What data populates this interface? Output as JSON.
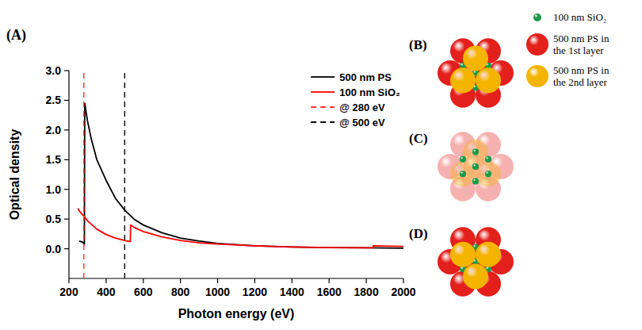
{
  "chart_data": {
    "type": "line",
    "xlabel": "Photon energy (eV)",
    "ylabel": "Optical density",
    "xlim": [
      200,
      2000
    ],
    "xticks": [
      200,
      400,
      600,
      800,
      1000,
      1200,
      1400,
      1600,
      1800,
      2000
    ],
    "ylim": [
      -0.5,
      3.0
    ],
    "yticks": [
      {
        "value": 0,
        "label": "0.0"
      },
      0.5,
      {
        "value": 1,
        "label": "1.0"
      },
      1.5,
      {
        "value": 2,
        "label": "2.0"
      },
      2.5,
      {
        "value": 3,
        "label": "3.0"
      }
    ],
    "grid": false,
    "legend": "upper right",
    "series": [
      {
        "name": "500 nm PS",
        "color": "#000000",
        "line_style": "solid",
        "x": [
          255,
          265,
          275,
          283,
          285,
          290,
          300,
          320,
          350,
          400,
          450,
          500,
          550,
          600,
          700,
          800,
          900,
          1000,
          1200,
          1400,
          1600,
          1800,
          2000
        ],
        "values": [
          0.13,
          0.12,
          0.11,
          0.08,
          2.45,
          2.35,
          2.15,
          1.85,
          1.5,
          1.15,
          0.85,
          0.65,
          0.5,
          0.4,
          0.27,
          0.18,
          0.13,
          0.09,
          0.05,
          0.03,
          0.02,
          0.015,
          0.01
        ]
      },
      {
        "name": "100 nm SiO₂",
        "color": "#ff0000",
        "line_style": "solid",
        "x": [
          248,
          260,
          280,
          300,
          350,
          400,
          450,
          500,
          530,
          532,
          550,
          600,
          700,
          800,
          900,
          1000,
          1200,
          1400,
          1600,
          1800,
          1835,
          1838,
          2000
        ],
        "values": [
          0.68,
          0.62,
          0.55,
          0.47,
          0.33,
          0.24,
          0.18,
          0.14,
          0.12,
          0.4,
          0.36,
          0.29,
          0.2,
          0.14,
          0.1,
          0.08,
          0.05,
          0.03,
          0.02,
          0.015,
          0.015,
          0.05,
          0.04
        ]
      },
      {
        "name": "@ 280 eV",
        "color": "#ff3333",
        "line_style": "dashed",
        "x": [
          280,
          280
        ],
        "values": [
          -0.5,
          3.0
        ]
      },
      {
        "name": "@ 500 eV",
        "color": "#000000",
        "line_style": "dashed",
        "x": [
          500,
          500
        ],
        "values": [
          -0.5,
          3.0
        ]
      }
    ]
  },
  "panels": [
    {
      "label": "(A)"
    },
    {
      "label": "(B)"
    },
    {
      "label": "(C)"
    },
    {
      "label": "(D)"
    }
  ],
  "diagram_legend": [
    {
      "color": "#1a9a4a",
      "lines": [
        "100 nm SiO₂"
      ]
    },
    {
      "color": "#e3201b",
      "lines": [
        "500 nm PS in",
        "the 1st layer"
      ]
    },
    {
      "color": "#f4b400",
      "lines": [
        "500 nm PS in",
        "the 2nd layer"
      ]
    }
  ]
}
